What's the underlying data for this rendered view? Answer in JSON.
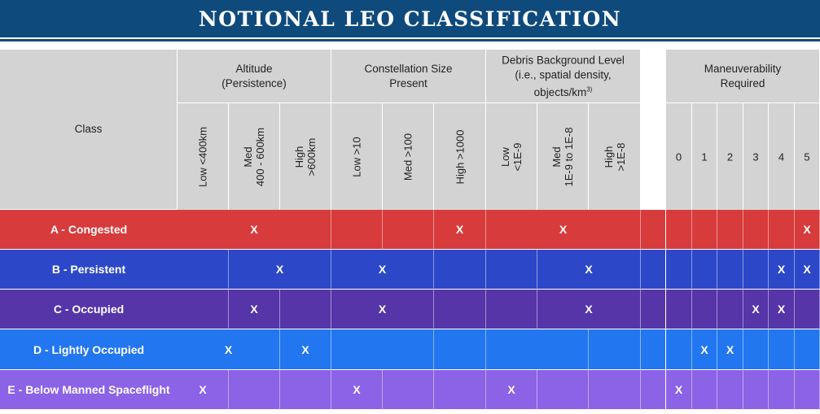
{
  "title": "NOTIONAL LEO CLASSIFICATION",
  "class_header": "Class",
  "groups": {
    "altitude": "Altitude\n(Persistence)",
    "constellation": "Constellation Size\nPresent",
    "debris": "Debris Background Level\n(i.e., spatial density,\nobjects/km",
    "debris_sup": "3)",
    "maneuverability": "Maneuverability\nRequired"
  },
  "columns": {
    "altitude": [
      "Low <400km",
      "Med\n400 - 600km",
      "High\n>600km"
    ],
    "constellation": [
      "Low >10",
      "Med >100",
      "High >1000"
    ],
    "debris": [
      "Low\n<1E-9",
      "Med\n1E-9 to 1E-8",
      "High\n>1E-8"
    ],
    "maneuverability": [
      "0",
      "1",
      "2",
      "3",
      "4",
      "5"
    ]
  },
  "mark": "X",
  "colors": {
    "banner": "#0f4a7d",
    "header": "#d3d3d3",
    "A": "#d83b3b",
    "B": "#2c48c9",
    "C": "#5535a8",
    "D": "#2277f0",
    "E": "#8c62e6"
  },
  "rows": [
    {
      "key": "A",
      "label": "A - Congested"
    },
    {
      "key": "B",
      "label": "B - Persistent"
    },
    {
      "key": "C",
      "label": "C - Occupied"
    },
    {
      "key": "D",
      "label": "D - Lightly Occupied"
    },
    {
      "key": "E",
      "label": "E - Below Manned Spaceflight"
    }
  ]
}
